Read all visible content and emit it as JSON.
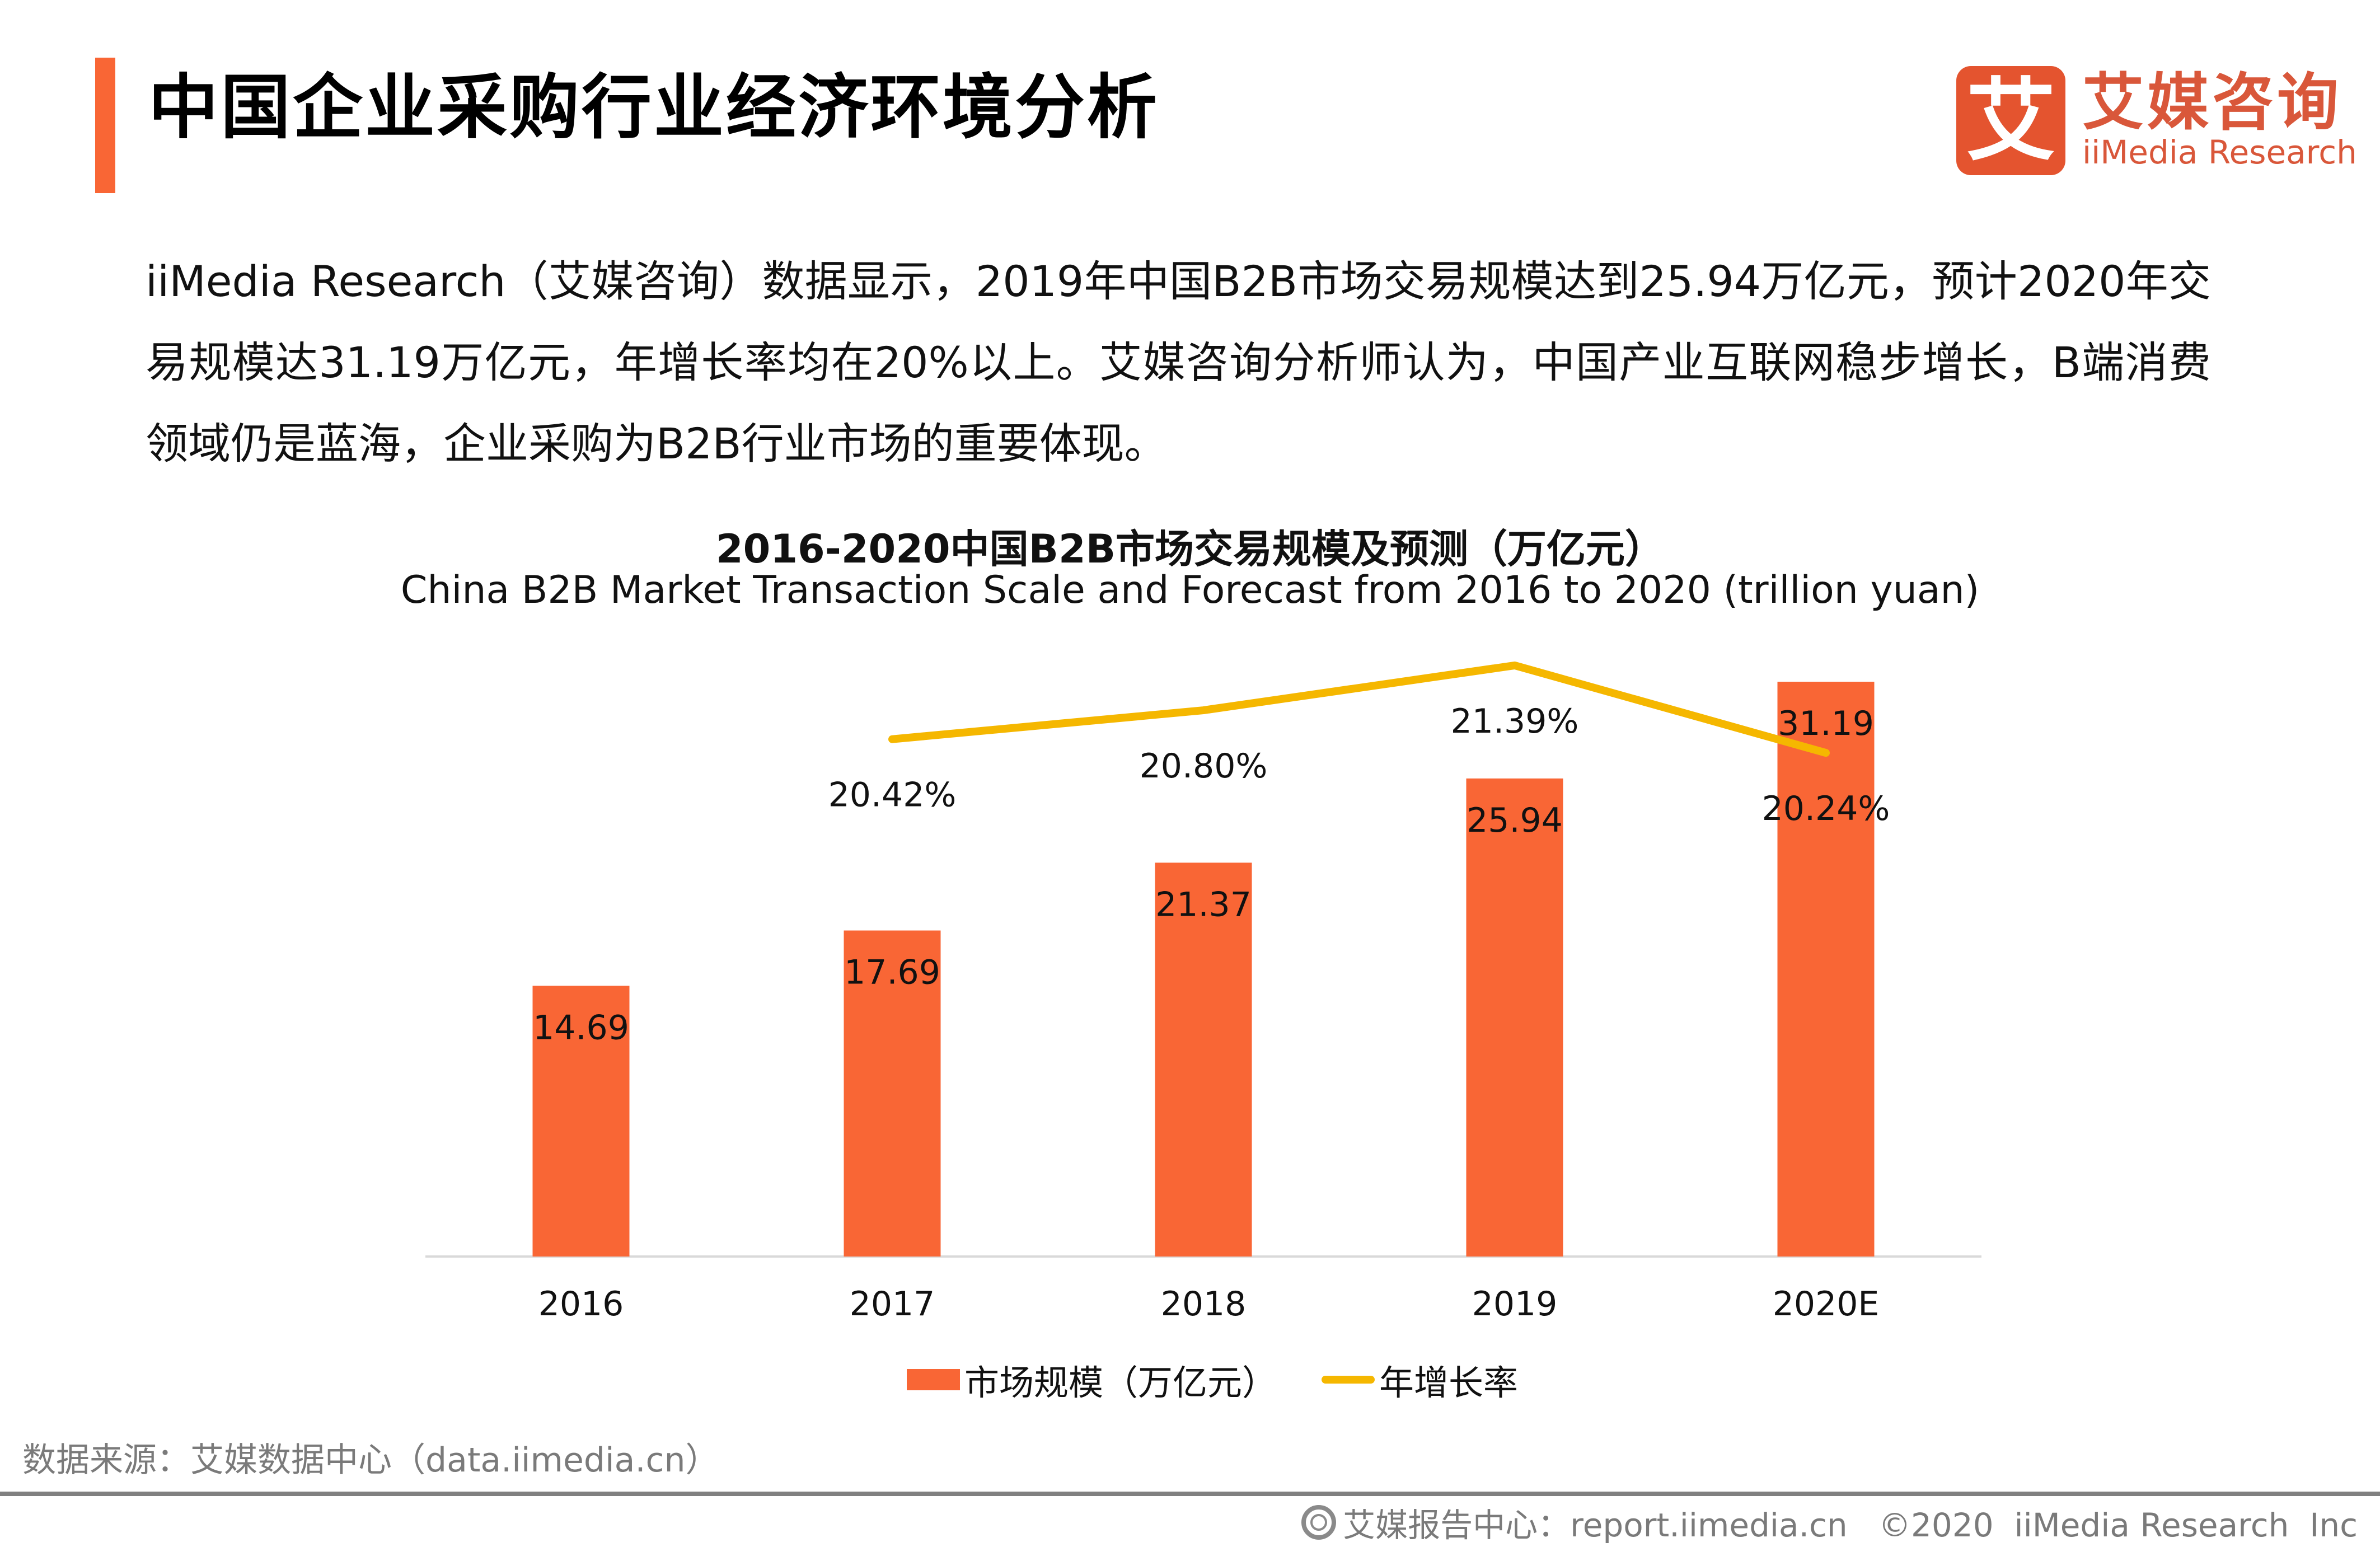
{
  "header": {
    "title": "中国企业采购行业经济环境分析",
    "logo": {
      "mark": "艾",
      "name_cn": "艾媒咨询",
      "name_en": "iiMedia Research"
    }
  },
  "intro_text": "iiMedia Research（艾媒咨询）数据显示，2019年中国B2B市场交易规模达到25.94万亿元，预计2020年交易规模达31.19万亿元，年增长率均在20%以上。艾媒咨询分析师认为，中国产业互联网稳步增长，B端消费领域仍是蓝海，企业采购为B2B行业市场的重要体现。",
  "chart_data": {
    "type": "bar",
    "title": "2016-2020中国B2B市场交易规模及预测（万亿元）",
    "subtitle": "China B2B Market Transaction Scale and Forecast from 2016 to 2020 (trillion yuan)",
    "categories": [
      "2016",
      "2017",
      "2018",
      "2019",
      "2020E"
    ],
    "series": [
      {
        "name": "市场规模（万亿元）",
        "type": "bar",
        "color": "#F96635",
        "values": [
          14.69,
          17.69,
          21.37,
          25.94,
          31.19
        ],
        "labels": [
          "14.69",
          "17.69",
          "21.37",
          "25.94",
          "31.19"
        ]
      },
      {
        "name": "年增长率",
        "type": "line",
        "color": "#F5B700",
        "values": [
          null,
          20.42,
          20.8,
          21.39,
          20.24
        ],
        "labels": [
          "",
          "20.42%",
          "20.80%",
          "21.39%",
          "20.24%"
        ]
      }
    ],
    "xlabel": "",
    "ylabel": "",
    "ylim_bar": [
      0,
      31.19
    ],
    "ylim_line_note": "secondary axis, hidden",
    "grid": false,
    "legend_position": "bottom"
  },
  "source": "数据来源：艾媒数据中心（data.iimedia.cn）",
  "footer": {
    "text": "艾媒报告中心：report.iimedia.cn   ©2020  iiMedia Research  Inc"
  }
}
